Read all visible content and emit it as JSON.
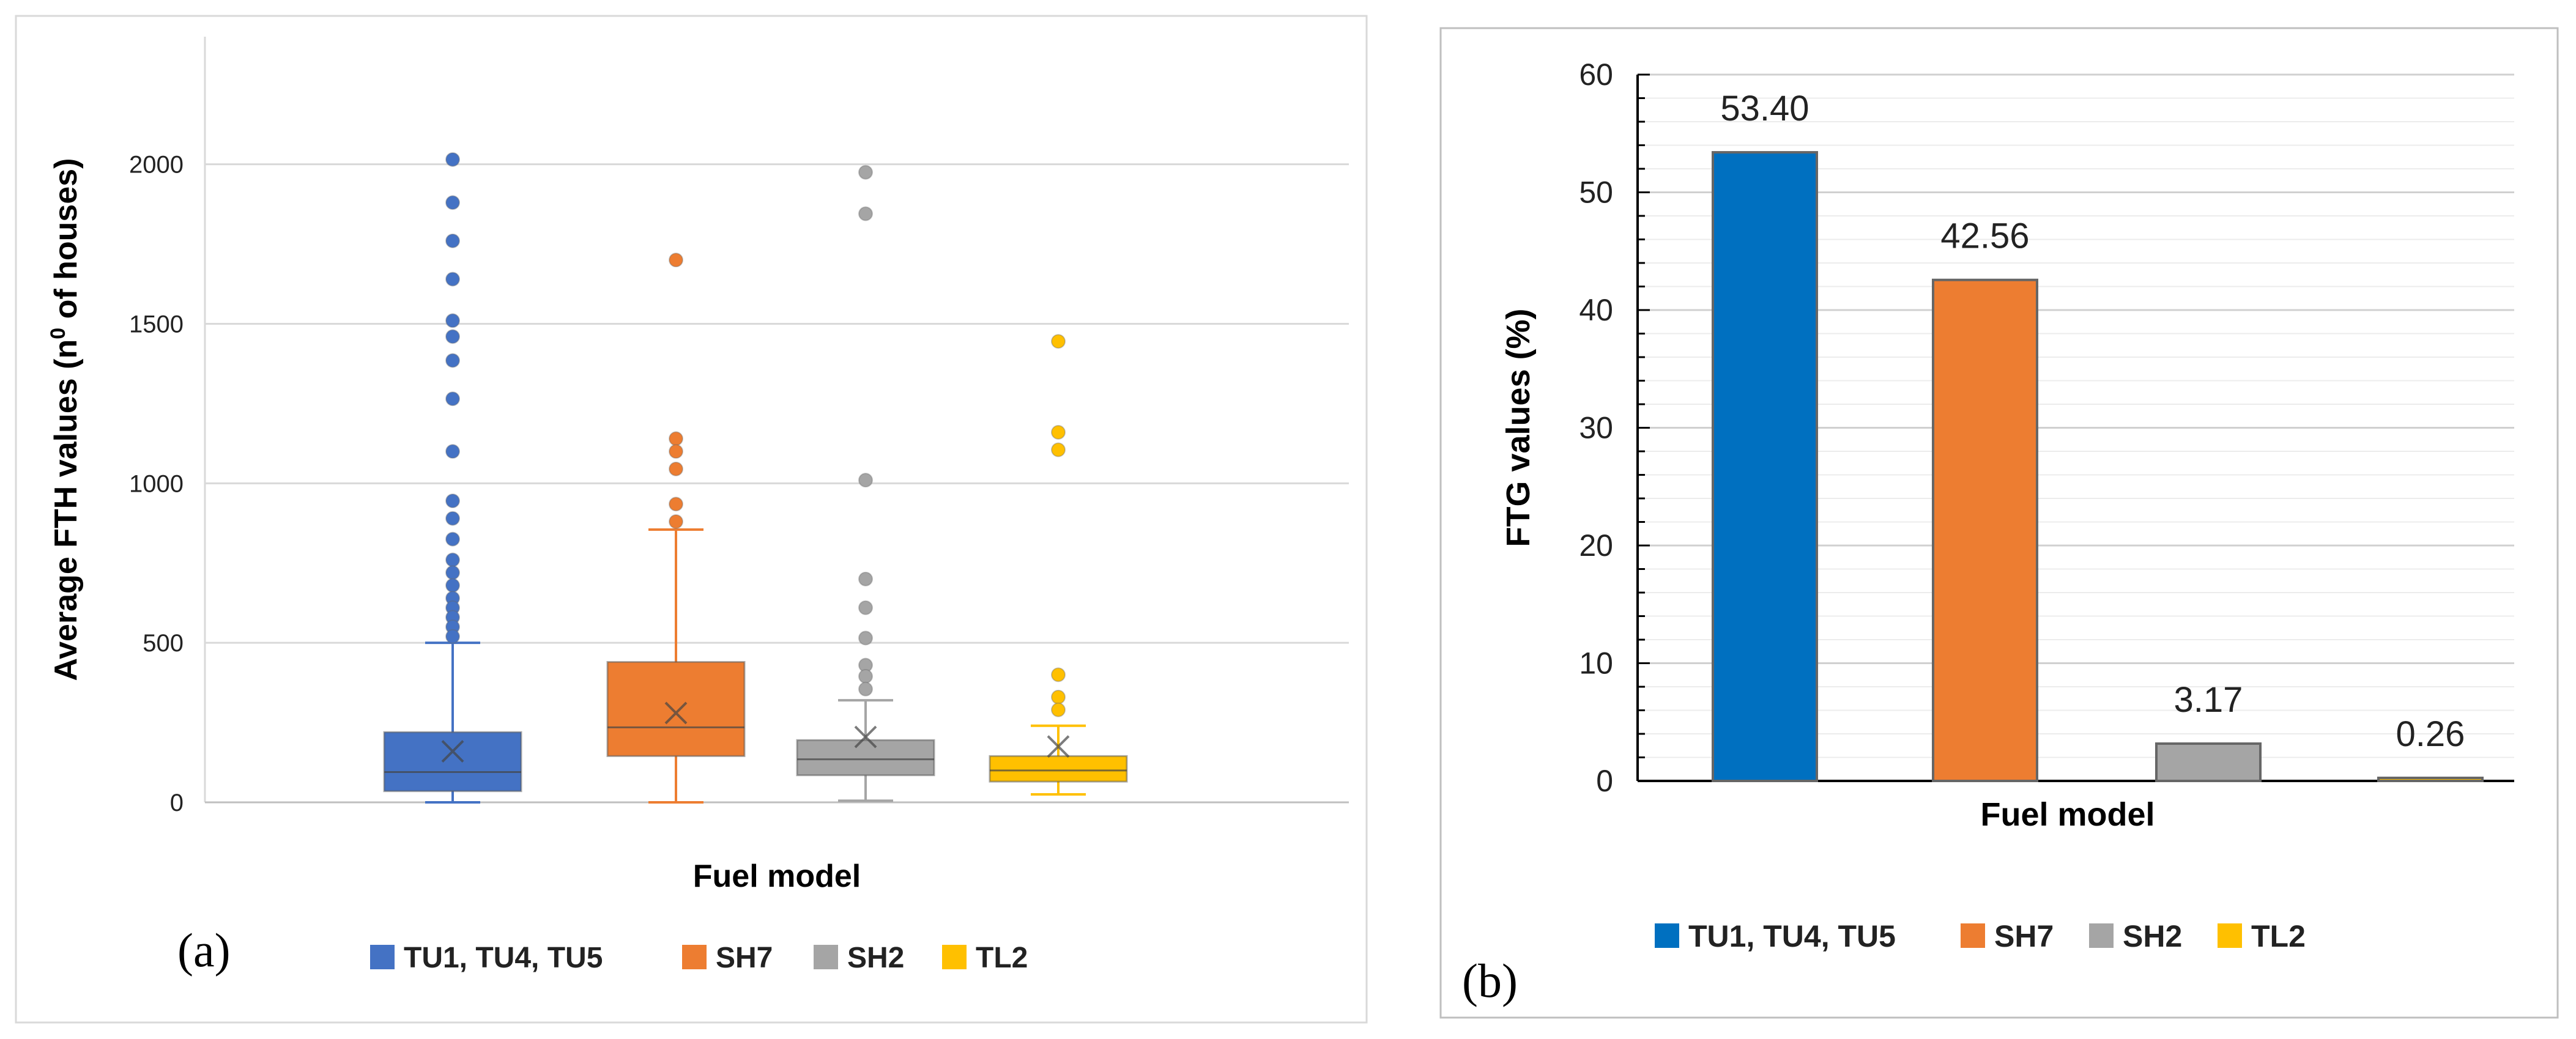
{
  "chart_data": [
    {
      "type": "box",
      "panel_label": "(a)",
      "xlabel": "Fuel model",
      "ylabel_main": "Average FTH values (n",
      "ylabel_sup": "0",
      "ylabel_tail": " of houses)",
      "ylim": [
        0,
        2400
      ],
      "yticks": [
        "0",
        "500",
        "1000",
        "1500",
        "2000"
      ],
      "ytick_values": [
        0,
        500,
        1000,
        1500,
        2000
      ],
      "grid": true,
      "legend_position": "bottom",
      "series": [
        {
          "name": "TU1, TU4, TU5",
          "color": "#4472c4",
          "min": 0,
          "q1": 35,
          "median": 95,
          "q3": 220,
          "max": 500,
          "mean": 160,
          "outliers": [
            2015,
            1880,
            1760,
            1640,
            1510,
            1460,
            1385,
            1265,
            1100,
            945,
            890,
            825,
            760,
            720,
            680,
            640,
            610,
            580,
            550,
            520
          ]
        },
        {
          "name": "SH7",
          "color": "#ed7d31",
          "min": 0,
          "q1": 145,
          "median": 235,
          "q3": 440,
          "max": 855,
          "mean": 280,
          "outliers": [
            1700,
            1140,
            1100,
            1045,
            935,
            880
          ]
        },
        {
          "name": "SH2",
          "color": "#a5a5a5",
          "min": 5,
          "q1": 85,
          "median": 135,
          "q3": 195,
          "max": 320,
          "mean": 205,
          "outliers": [
            1975,
            1845,
            1010,
            700,
            610,
            515,
            430,
            395,
            355
          ]
        },
        {
          "name": "TL2",
          "color": "#ffc000",
          "min": 25,
          "q1": 65,
          "median": 100,
          "q3": 145,
          "max": 240,
          "mean": 175,
          "outliers": [
            1445,
            1160,
            1105,
            400,
            330,
            290
          ]
        }
      ]
    },
    {
      "type": "bar",
      "panel_label": "(b)",
      "xlabel": "Fuel model",
      "ylabel": "FTG values (%)",
      "ylim": [
        0,
        60
      ],
      "yticks": [
        "0",
        "10",
        "20",
        "30",
        "40",
        "50",
        "60"
      ],
      "ytick_values": [
        0,
        10,
        20,
        30,
        40,
        50,
        60
      ],
      "grid": true,
      "legend_position": "bottom",
      "categories": [
        "TU1, TU4, TU5",
        "SH7",
        "SH2",
        "TL2"
      ],
      "values": [
        53.4,
        42.56,
        3.17,
        0.26
      ],
      "value_labels": [
        "53.40",
        "42.56",
        "3.17",
        "0.26"
      ],
      "colors": [
        "#0070c0",
        "#ed7d31",
        "#a5a5a5",
        "#ffc000"
      ]
    }
  ]
}
